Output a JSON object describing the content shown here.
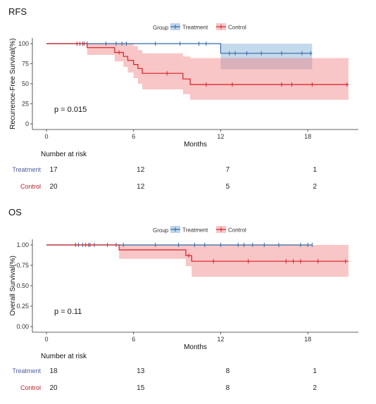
{
  "colors": {
    "treatment": "#2f6aa8",
    "control": "#d61f26",
    "treatment_band": "#6e9fd0",
    "control_band": "#f08080",
    "treatment_label": "#4a5f9a",
    "control_label": "#b8242a"
  },
  "chart_data": [
    {
      "type": "line",
      "panel_label": "RFS",
      "ylabel": "Recurrence-Free Survival(%)",
      "xlabel": "Months",
      "ylim": [
        0,
        100
      ],
      "xlim": [
        0,
        21
      ],
      "xticks": [
        0,
        6,
        12,
        18
      ],
      "yticks": [
        0,
        25,
        50,
        75,
        100
      ],
      "ytick_labels": [
        "0",
        "25",
        "50",
        "75",
        "100"
      ],
      "legend_title": "Group",
      "legend_placement": "top-center",
      "annotation": "p = 0.015",
      "series": [
        {
          "name": "Treatment",
          "steps": [
            [
              0,
              100
            ],
            [
              12,
              88
            ],
            [
              18.3,
              88
            ]
          ],
          "ci": [
            [
              0,
              100,
              100
            ],
            [
              12,
              68,
              100
            ],
            [
              18.3,
              68,
              100
            ]
          ],
          "censor_x": [
            2.3,
            2.6,
            2.8,
            4.1,
            4.8,
            5.2,
            5.5,
            7.5,
            9.2,
            10.5,
            11.0,
            12.6,
            13.0,
            13.8,
            14.8,
            16.2,
            17.6,
            18.2
          ]
        },
        {
          "name": "Control",
          "steps": [
            [
              0,
              100
            ],
            [
              2.8,
              95
            ],
            [
              4.7,
              89
            ],
            [
              5.3,
              84
            ],
            [
              5.6,
              79
            ],
            [
              6.0,
              74
            ],
            [
              6.3,
              69
            ],
            [
              6.6,
              63
            ],
            [
              9.4,
              56
            ],
            [
              9.9,
              49
            ],
            [
              20.8,
              49
            ]
          ],
          "ci": [
            [
              0,
              100,
              100
            ],
            [
              2.8,
              86,
              100
            ],
            [
              4.7,
              78,
              100
            ],
            [
              5.3,
              71,
              100
            ],
            [
              5.6,
              64,
              100
            ],
            [
              6.0,
              57,
              97
            ],
            [
              6.3,
              50,
              92
            ],
            [
              6.6,
              43,
              88
            ],
            [
              9.4,
              37,
              84
            ],
            [
              9.9,
              30,
              82
            ],
            [
              20.8,
              30,
              82
            ]
          ],
          "censor_x": [
            2.1,
            2.5,
            5.0,
            8.3,
            11.0,
            12.8,
            16.2,
            16.9,
            18.3,
            20.7
          ]
        }
      ],
      "risk_table": {
        "title": "Number at risk",
        "times": [
          0,
          6,
          12,
          18
        ],
        "rows": [
          {
            "group": "Treatment",
            "counts": [
              "17",
              "12",
              "7",
              "1"
            ]
          },
          {
            "group": "Control",
            "counts": [
              "20",
              "12",
              "5",
              "2"
            ]
          }
        ]
      }
    },
    {
      "type": "line",
      "panel_label": "OS",
      "ylabel": "Overall Survival(%)",
      "xlabel": "Months",
      "ylim": [
        0,
        1
      ],
      "xlim": [
        0,
        21
      ],
      "xticks": [
        0,
        6,
        12,
        18
      ],
      "yticks": [
        0,
        0.25,
        0.5,
        0.75,
        1.0
      ],
      "ytick_labels": [
        "0.00",
        "0.25",
        "0.50",
        "0.75",
        "1.00"
      ],
      "legend_title": "Group",
      "legend_placement": "top-center",
      "annotation": "p = 0.11",
      "series": [
        {
          "name": "Treatment",
          "steps": [
            [
              0,
              1.0
            ],
            [
              18.3,
              1.0
            ]
          ],
          "ci": [
            [
              0,
              1.0,
              1.0
            ],
            [
              18.3,
              1.0,
              1.0
            ]
          ],
          "censor_x": [
            2.2,
            2.5,
            2.9,
            3.3,
            4.2,
            4.8,
            5.3,
            7.5,
            9.1,
            10.2,
            10.9,
            12.0,
            13.2,
            13.6,
            14.2,
            15.0,
            16.0,
            17.5,
            18.0,
            18.3
          ]
        },
        {
          "name": "Control",
          "steps": [
            [
              0,
              1.0
            ],
            [
              5.0,
              0.94
            ],
            [
              9.6,
              0.87
            ],
            [
              10.0,
              0.8
            ],
            [
              20.8,
              0.8
            ]
          ],
          "ci": [
            [
              0,
              1.0,
              1.0
            ],
            [
              5.0,
              0.83,
              1.0
            ],
            [
              9.6,
              0.74,
              1.0
            ],
            [
              10.0,
              0.61,
              1.0
            ],
            [
              20.8,
              0.61,
              1.0
            ]
          ],
          "censor_x": [
            2.0,
            2.7,
            3.0,
            9.8,
            11.5,
            13.9,
            16.5,
            17.0,
            17.5,
            18.7,
            20.6
          ]
        }
      ],
      "risk_table": {
        "title": "Number at risk",
        "times": [
          0,
          6,
          12,
          18
        ],
        "rows": [
          {
            "group": "Treatment",
            "counts": [
              "18",
              "13",
              "8",
              "1"
            ]
          },
          {
            "group": "Control",
            "counts": [
              "20",
              "15",
              "8",
              "2"
            ]
          }
        ]
      }
    }
  ]
}
